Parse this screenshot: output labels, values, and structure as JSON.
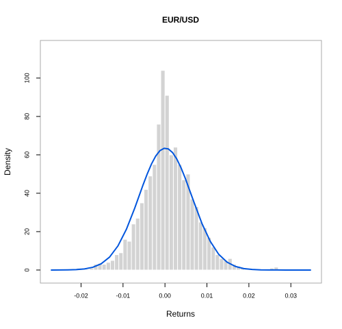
{
  "chart_data": {
    "type": "histogram",
    "title": "EUR/USD",
    "xlabel": "Returns",
    "ylabel": "Density",
    "bins": [
      -0.021,
      -0.02,
      -0.019,
      -0.018,
      -0.017,
      -0.016,
      -0.015,
      -0.014,
      -0.013,
      -0.012,
      -0.011,
      -0.01,
      -0.009,
      -0.008,
      -0.007,
      -0.006,
      -0.005,
      -0.004,
      -0.003,
      -0.002,
      -0.001,
      0.0,
      0.001,
      0.002,
      0.003,
      0.004,
      0.005,
      0.006,
      0.007,
      0.008,
      0.009,
      0.01,
      0.011,
      0.012,
      0.013,
      0.014,
      0.015,
      0.016,
      0.017,
      0.018,
      0.019,
      0.02,
      0.021,
      0.022,
      0.023,
      0.024,
      0.025,
      0.026,
      0.027
    ],
    "values": [
      1,
      1,
      0.5,
      1,
      3,
      3.5,
      3,
      4,
      5,
      8,
      9,
      16,
      15,
      24,
      27,
      35,
      42,
      49,
      55,
      76,
      104,
      91,
      60,
      64,
      55,
      47,
      50,
      37,
      33,
      25,
      22,
      17,
      12,
      8,
      6,
      5,
      6,
      3,
      2,
      1,
      1,
      0.5,
      0.3,
      0.3,
      0.3,
      0.3,
      1,
      1.5
    ],
    "color": "#d3d3d3",
    "curve": {
      "type": "line",
      "color": "#0055dd",
      "x": [
        -0.0272,
        -0.0252,
        -0.0232,
        -0.0212,
        -0.0192,
        -0.0172,
        -0.0152,
        -0.0132,
        -0.0112,
        -0.0092,
        -0.0072,
        -0.0052,
        -0.0042,
        -0.0032,
        -0.0022,
        -0.0012,
        -0.0002,
        0.0008,
        0.0018,
        0.0028,
        0.0038,
        0.0048,
        0.0068,
        0.0088,
        0.0108,
        0.0128,
        0.0148,
        0.0168,
        0.0188,
        0.0208,
        0.0228,
        0.0248,
        0.0268,
        0.0288,
        0.0308,
        0.0328,
        0.0348
      ],
      "values": [
        0,
        0.02,
        0.07,
        0.2,
        0.57,
        1.43,
        3.26,
        6.75,
        12.6,
        21.2,
        32.3,
        44.5,
        50.2,
        55.3,
        59.4,
        62.2,
        63.4,
        63.1,
        61.2,
        57.9,
        53.4,
        48.0,
        36.0,
        24.3,
        14.9,
        8.2,
        4.1,
        1.85,
        0.75,
        0.28,
        0.09,
        0.03,
        0.01,
        0,
        0,
        0,
        0
      ]
    },
    "xlim": [
      -0.0297,
      0.0373
    ],
    "ylim": [
      -6.8,
      119.6
    ],
    "xticks": [
      -0.02,
      -0.01,
      {
        "value": 0,
        "label": "0.00"
      },
      0.01,
      0.02,
      0.03
    ],
    "yticks": [
      0,
      20,
      40,
      60,
      80,
      100
    ]
  }
}
